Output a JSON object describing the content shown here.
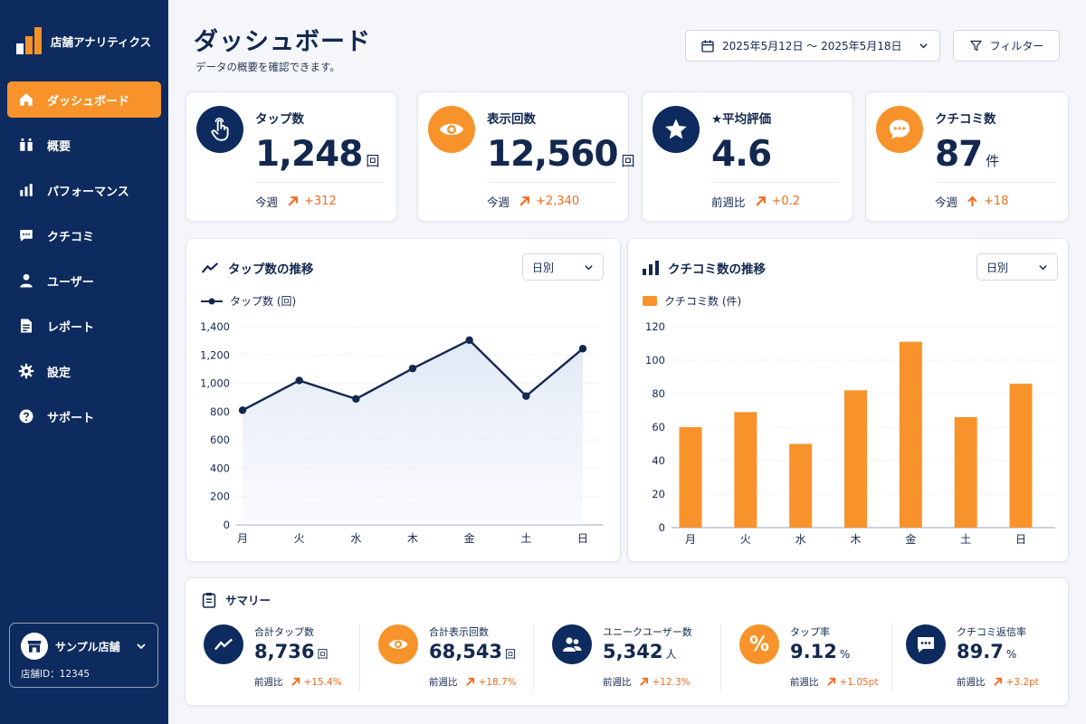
{
  "brand": {
    "name": "店舗アナリティクス"
  },
  "nav": [
    {
      "label": "ダッシュボード",
      "icon": "home-icon",
      "active": true
    },
    {
      "label": "概要",
      "icon": "overview-icon"
    },
    {
      "label": "パフォーマンス",
      "icon": "bar-chart-icon"
    },
    {
      "label": "クチコミ",
      "icon": "chat-icon"
    },
    {
      "label": "ユーザー",
      "icon": "user-icon"
    },
    {
      "label": "レポート",
      "icon": "document-icon"
    },
    {
      "label": "設定",
      "icon": "gear-icon"
    },
    {
      "label": "サポート",
      "icon": "help-icon"
    }
  ],
  "store": {
    "name": "サンプル店舗",
    "id_text": "店舗ID：12345"
  },
  "header": {
    "title": "ダッシュボード",
    "subtitle": "データの概要を確認できます。",
    "date_range": "2025年5月12日 〜 2025年5月18日",
    "filter_label": "フィルター"
  },
  "kpis": [
    {
      "label": "タップ数",
      "value": "1,248",
      "unit": "回",
      "period": "今週",
      "delta": "+312",
      "icon": "tap-icon",
      "color": "#0d2b5e"
    },
    {
      "label": "表示回数",
      "value": "12,560",
      "unit": "回",
      "period": "今週",
      "delta": "+2,340",
      "icon": "eye-icon",
      "color": "#f7932a"
    },
    {
      "label": "★平均評価",
      "value": "4.6",
      "unit": "",
      "period": "前週比",
      "delta": "+0.2",
      "icon": "star-icon",
      "color": "#0d2b5e"
    },
    {
      "label": "クチコミ数",
      "value": "87",
      "unit": "件",
      "period": "今週",
      "delta": "+18",
      "icon": "chat-bubble-icon",
      "color": "#f7932a"
    }
  ],
  "tap_chart": {
    "title": "タップ数の推移",
    "select": "日別",
    "legend": "タップ数 (回)"
  },
  "review_chart": {
    "title": "クチコミ数の推移",
    "select": "日別",
    "legend": "クチコミ数 (件)"
  },
  "chart_data": [
    {
      "type": "line",
      "title": "タップ数の推移",
      "categories": [
        "月",
        "火",
        "水",
        "木",
        "金",
        "土",
        "日"
      ],
      "series": [
        {
          "name": "タップ数 (回)",
          "values": [
            810,
            1020,
            890,
            1105,
            1305,
            910,
            1245
          ]
        }
      ],
      "ylim": [
        0,
        1400
      ],
      "yticks": [
        "0",
        "200",
        "400",
        "600",
        "800",
        "1,000",
        "1,200",
        "1,400"
      ],
      "grid": true,
      "color": "#13284f"
    },
    {
      "type": "bar",
      "title": "クチコミ数の推移",
      "categories": [
        "月",
        "火",
        "水",
        "木",
        "金",
        "土",
        "日"
      ],
      "series": [
        {
          "name": "クチコミ数 (件)",
          "values": [
            60,
            69,
            50,
            82,
            111,
            66,
            86
          ]
        }
      ],
      "ylim": [
        0,
        120
      ],
      "yticks": [
        "0",
        "20",
        "40",
        "60",
        "80",
        "100",
        "120"
      ],
      "grid": true,
      "color": "#f7932a"
    }
  ],
  "summary": {
    "title": "サマリー",
    "items": [
      {
        "label": "合計タップ数",
        "value": "8,736",
        "unit": "回",
        "period": "前週比",
        "delta": "+15.4%",
        "icon": "trend-icon",
        "color": "#0d2b5e"
      },
      {
        "label": "合計表示回数",
        "value": "68,543",
        "unit": "回",
        "period": "前週比",
        "delta": "+18.7%",
        "icon": "eye-icon",
        "color": "#f7932a"
      },
      {
        "label": "ユニークユーザー数",
        "value": "5,342",
        "unit": "人",
        "period": "前週比",
        "delta": "+12.3%",
        "icon": "users-icon",
        "color": "#0d2b5e"
      },
      {
        "label": "タップ率",
        "value": "9.12",
        "unit": "%",
        "period": "前週比",
        "delta": "+1.05pt",
        "icon": "percent-icon",
        "color": "#f7932a"
      },
      {
        "label": "クチコミ返信率",
        "value": "89.7",
        "unit": "%",
        "period": "前週比",
        "delta": "+3.2pt",
        "icon": "chat-bubble-icon",
        "color": "#0d2b5e"
      }
    ]
  }
}
